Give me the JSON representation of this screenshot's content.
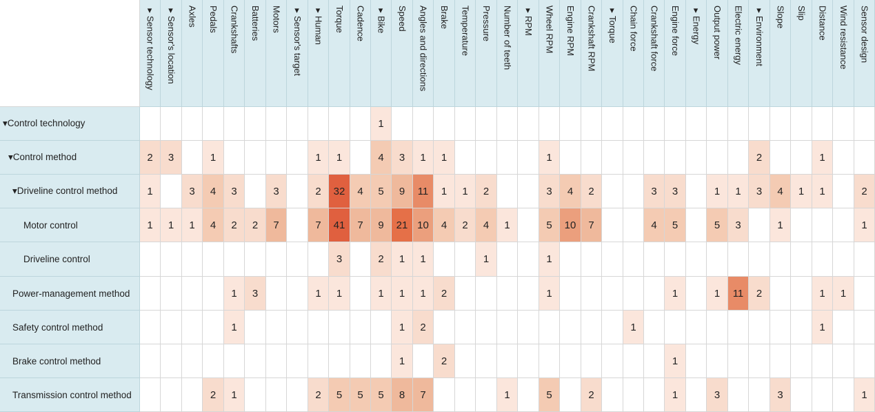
{
  "chart_data": {
    "type": "heatmap",
    "columns": [
      "▾Sensor technology",
      "▾Sensor's location",
      "Axles",
      "Pedals",
      "Crankshafts",
      "Batteries",
      "Motors",
      "▾Sensor's target",
      "▾Human",
      "Torque",
      "Cadence",
      "▾Bike",
      "Speed",
      "Angles and directions",
      "Brake",
      "Temperature",
      "Pressure",
      "Number of teeth",
      "▾RPM",
      "Wheel RPM",
      "Engine RPM",
      "Crankshaft RPM",
      "▾Torque",
      "Chain force",
      "Crankshaft force",
      "Engine force",
      "▾Energy",
      "Output power",
      "Electric energy",
      "▾Environment",
      "Slope",
      "Slip",
      "Distance",
      "Wind resistance",
      "Sensor design"
    ],
    "rows": [
      {
        "label": "▾Control technology",
        "indent": 0,
        "values": [
          null,
          null,
          null,
          null,
          null,
          null,
          null,
          null,
          null,
          null,
          null,
          1,
          null,
          null,
          null,
          null,
          null,
          null,
          null,
          null,
          null,
          null,
          null,
          null,
          null,
          null,
          null,
          null,
          null,
          null,
          null,
          null,
          null,
          null,
          null
        ]
      },
      {
        "label": "▾Control method",
        "indent": 1,
        "values": [
          2,
          3,
          null,
          1,
          null,
          null,
          null,
          null,
          1,
          1,
          null,
          4,
          3,
          1,
          1,
          null,
          null,
          null,
          null,
          1,
          null,
          null,
          null,
          null,
          null,
          null,
          null,
          null,
          null,
          2,
          null,
          null,
          1,
          null,
          null
        ]
      },
      {
        "label": "▾Driveline control method",
        "indent": 2,
        "values": [
          1,
          null,
          3,
          4,
          3,
          null,
          3,
          null,
          2,
          32,
          4,
          5,
          9,
          11,
          1,
          1,
          2,
          null,
          null,
          3,
          4,
          2,
          null,
          null,
          3,
          3,
          null,
          1,
          1,
          3,
          4,
          1,
          1,
          null,
          2
        ]
      },
      {
        "label": "Motor control",
        "indent": 3,
        "values": [
          1,
          1,
          1,
          4,
          2,
          2,
          7,
          null,
          7,
          41,
          7,
          9,
          21,
          10,
          4,
          2,
          4,
          1,
          null,
          5,
          10,
          7,
          null,
          null,
          4,
          5,
          null,
          5,
          3,
          null,
          1,
          null,
          null,
          null,
          1
        ]
      },
      {
        "label": "Driveline control",
        "indent": 3,
        "values": [
          null,
          null,
          null,
          null,
          null,
          null,
          null,
          null,
          null,
          3,
          null,
          2,
          1,
          1,
          null,
          null,
          1,
          null,
          null,
          1,
          null,
          null,
          null,
          null,
          null,
          null,
          null,
          null,
          null,
          null,
          null,
          null,
          null,
          null,
          null
        ]
      },
      {
        "label": "Power-management method",
        "indent": 2,
        "values": [
          null,
          null,
          null,
          null,
          1,
          3,
          null,
          null,
          1,
          1,
          null,
          1,
          1,
          1,
          2,
          null,
          null,
          null,
          null,
          1,
          null,
          null,
          null,
          null,
          null,
          1,
          null,
          1,
          11,
          2,
          null,
          null,
          1,
          1,
          null
        ]
      },
      {
        "label": "Safety control method",
        "indent": 2,
        "values": [
          null,
          null,
          null,
          null,
          1,
          null,
          null,
          null,
          null,
          null,
          null,
          null,
          1,
          2,
          null,
          null,
          null,
          null,
          null,
          null,
          null,
          null,
          null,
          1,
          null,
          null,
          null,
          null,
          null,
          null,
          null,
          null,
          1,
          null,
          null
        ]
      },
      {
        "label": "Brake control method",
        "indent": 2,
        "values": [
          null,
          null,
          null,
          null,
          null,
          null,
          null,
          null,
          null,
          null,
          null,
          null,
          1,
          null,
          2,
          null,
          null,
          null,
          null,
          null,
          null,
          null,
          null,
          null,
          null,
          1,
          null,
          null,
          null,
          null,
          null,
          null,
          null,
          null,
          null
        ]
      },
      {
        "label": "Transmission control method",
        "indent": 2,
        "values": [
          null,
          null,
          null,
          2,
          1,
          null,
          null,
          null,
          2,
          5,
          5,
          5,
          8,
          7,
          null,
          null,
          null,
          1,
          null,
          5,
          null,
          2,
          null,
          null,
          null,
          1,
          null,
          3,
          null,
          null,
          3,
          null,
          null,
          null,
          1
        ]
      }
    ],
    "colors": {
      "header_bg": "#d9ebf0",
      "scale": [
        {
          "min": 1,
          "max": 1,
          "color": "#fbe6dc"
        },
        {
          "min": 2,
          "max": 3,
          "color": "#f8dccd"
        },
        {
          "min": 4,
          "max": 5,
          "color": "#f4cbb3"
        },
        {
          "min": 6,
          "max": 9,
          "color": "#efb99c"
        },
        {
          "min": 10,
          "max": 10,
          "color": "#eb9f7d"
        },
        {
          "min": 11,
          "max": 11,
          "color": "#e88b67"
        },
        {
          "min": 12,
          "max": 21,
          "color": "#e57048"
        },
        {
          "min": 22,
          "max": 99,
          "color": "#e0603f"
        }
      ]
    }
  }
}
